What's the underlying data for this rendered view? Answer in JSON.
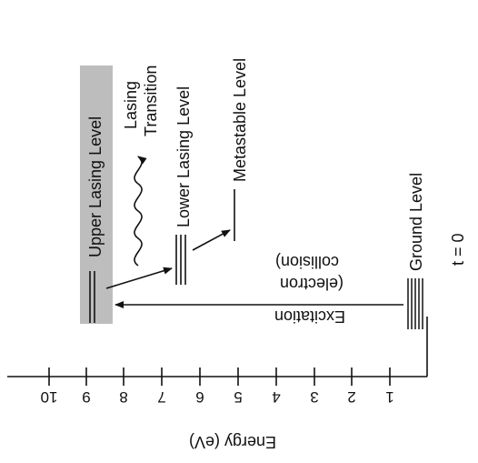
{
  "axis": {
    "title": "Energy (eV)",
    "ticks": [
      "10",
      "9",
      "8",
      "7",
      "6",
      "5",
      "4",
      "3",
      "2",
      "1"
    ]
  },
  "levels": {
    "upper": "Upper Lasing Level",
    "lower": "Lower Lasing Level",
    "metastable": "Metastable Level",
    "ground": "Ground Level"
  },
  "transition": {
    "line1": "Lasing",
    "line2": "Transition"
  },
  "excitation": {
    "line1": "Excitation",
    "line2": "(electron",
    "line3": "collision)"
  },
  "time_label": "t = 0",
  "colors": {
    "highlight": "#bdbdbd",
    "ink": "#111111"
  }
}
